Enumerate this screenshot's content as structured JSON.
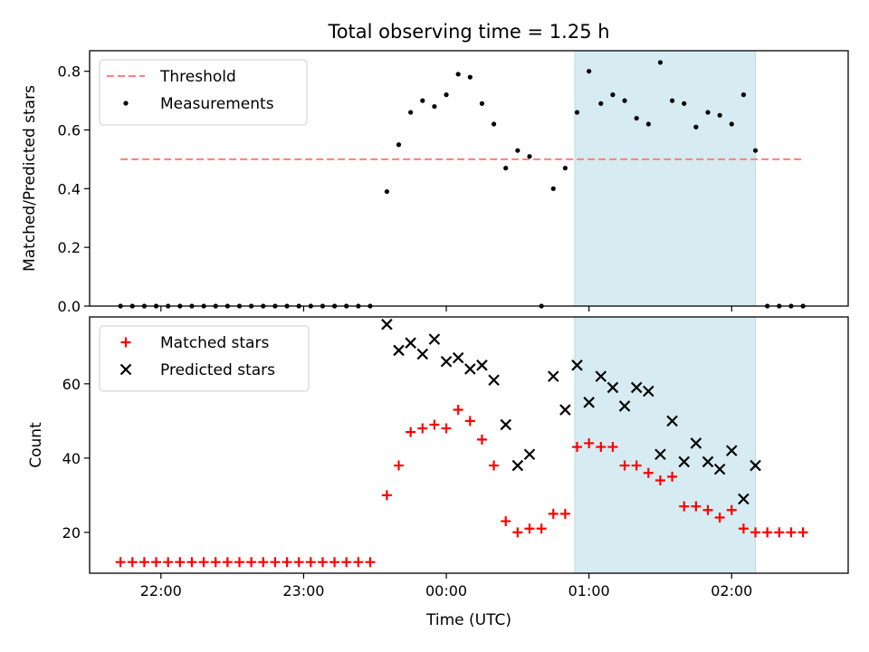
{
  "figure": {
    "title": "Total observing time = 1.25 h",
    "xlabel": "Time (UTC)"
  },
  "chart_data": [
    {
      "type": "scatter",
      "ylabel": "Matched/Predicted stars",
      "ylim": [
        0,
        0.87
      ],
      "xlim": [
        "21:30",
        "02:49"
      ],
      "yticks": [
        0.0,
        0.2,
        0.4,
        0.6,
        0.8
      ],
      "ytick_labels": [
        "0.0",
        "0.2",
        "0.4",
        "0.6",
        "0.8"
      ],
      "shaded_interval": [
        "00:54",
        "02:10"
      ],
      "grid": false,
      "legend_position": "upper-left",
      "threshold": {
        "name": "Threshold",
        "y": 0.5,
        "x_start": "21:43",
        "x_end": "02:30",
        "color": "#ff7f7f"
      },
      "series": [
        {
          "name": "Measurements",
          "marker": "dot",
          "color": "#000000",
          "points": [
            [
              "21:43",
              0.0
            ],
            [
              "21:48",
              0.0
            ],
            [
              "21:53",
              0.0
            ],
            [
              "21:58",
              0.0
            ],
            [
              "22:03",
              0.0
            ],
            [
              "22:08",
              0.0
            ],
            [
              "22:13",
              0.0
            ],
            [
              "22:18",
              0.0
            ],
            [
              "22:23",
              0.0
            ],
            [
              "22:28",
              0.0
            ],
            [
              "22:33",
              0.0
            ],
            [
              "22:38",
              0.0
            ],
            [
              "22:43",
              0.0
            ],
            [
              "22:48",
              0.0
            ],
            [
              "22:53",
              0.0
            ],
            [
              "22:58",
              0.0
            ],
            [
              "23:03",
              0.0
            ],
            [
              "23:08",
              0.0
            ],
            [
              "23:13",
              0.0
            ],
            [
              "23:18",
              0.0
            ],
            [
              "23:23",
              0.0
            ],
            [
              "23:28",
              0.0
            ],
            [
              "23:35",
              0.39
            ],
            [
              "23:40",
              0.55
            ],
            [
              "23:45",
              0.66
            ],
            [
              "23:50",
              0.7
            ],
            [
              "23:55",
              0.68
            ],
            [
              "00:00",
              0.72
            ],
            [
              "00:05",
              0.79
            ],
            [
              "00:10",
              0.78
            ],
            [
              "00:15",
              0.69
            ],
            [
              "00:20",
              0.62
            ],
            [
              "00:25",
              0.47
            ],
            [
              "00:30",
              0.53
            ],
            [
              "00:35",
              0.51
            ],
            [
              "00:40",
              0.0
            ],
            [
              "00:45",
              0.4
            ],
            [
              "00:50",
              0.47
            ],
            [
              "00:55",
              0.66
            ],
            [
              "01:00",
              0.8
            ],
            [
              "01:05",
              0.69
            ],
            [
              "01:10",
              0.72
            ],
            [
              "01:15",
              0.7
            ],
            [
              "01:20",
              0.64
            ],
            [
              "01:25",
              0.62
            ],
            [
              "01:30",
              0.83
            ],
            [
              "01:35",
              0.7
            ],
            [
              "01:40",
              0.69
            ],
            [
              "01:45",
              0.61
            ],
            [
              "01:50",
              0.66
            ],
            [
              "01:55",
              0.65
            ],
            [
              "02:00",
              0.62
            ],
            [
              "02:05",
              0.72
            ],
            [
              "02:10",
              0.53
            ],
            [
              "02:15",
              0.0
            ],
            [
              "02:20",
              0.0
            ],
            [
              "02:25",
              0.0
            ],
            [
              "02:30",
              0.0
            ]
          ]
        }
      ]
    },
    {
      "type": "scatter",
      "ylabel": "Count",
      "ylim": [
        9,
        78
      ],
      "xlim": [
        "21:30",
        "02:49"
      ],
      "yticks": [
        20,
        40,
        60
      ],
      "ytick_labels": [
        "20",
        "40",
        "60"
      ],
      "shaded_interval": [
        "00:54",
        "02:10"
      ],
      "grid": false,
      "legend_position": "upper-left",
      "xticks": [
        "22:00",
        "23:00",
        "00:00",
        "01:00",
        "02:00"
      ],
      "series": [
        {
          "name": "Matched stars",
          "marker": "plus",
          "color": "#ff0000",
          "points": [
            [
              "21:43",
              12
            ],
            [
              "21:48",
              12
            ],
            [
              "21:53",
              12
            ],
            [
              "21:58",
              12
            ],
            [
              "22:03",
              12
            ],
            [
              "22:08",
              12
            ],
            [
              "22:13",
              12
            ],
            [
              "22:18",
              12
            ],
            [
              "22:23",
              12
            ],
            [
              "22:28",
              12
            ],
            [
              "22:33",
              12
            ],
            [
              "22:38",
              12
            ],
            [
              "22:43",
              12
            ],
            [
              "22:48",
              12
            ],
            [
              "22:53",
              12
            ],
            [
              "22:58",
              12
            ],
            [
              "23:03",
              12
            ],
            [
              "23:08",
              12
            ],
            [
              "23:13",
              12
            ],
            [
              "23:18",
              12
            ],
            [
              "23:23",
              12
            ],
            [
              "23:28",
              12
            ],
            [
              "23:35",
              30
            ],
            [
              "23:40",
              38
            ],
            [
              "23:45",
              47
            ],
            [
              "23:50",
              48
            ],
            [
              "23:55",
              49
            ],
            [
              "00:00",
              48
            ],
            [
              "00:05",
              53
            ],
            [
              "00:10",
              50
            ],
            [
              "00:15",
              45
            ],
            [
              "00:20",
              38
            ],
            [
              "00:25",
              23
            ],
            [
              "00:30",
              20
            ],
            [
              "00:35",
              21
            ],
            [
              "00:40",
              21
            ],
            [
              "00:45",
              25
            ],
            [
              "00:50",
              25
            ],
            [
              "00:55",
              43
            ],
            [
              "01:00",
              44
            ],
            [
              "01:05",
              43
            ],
            [
              "01:10",
              43
            ],
            [
              "01:15",
              38
            ],
            [
              "01:20",
              38
            ],
            [
              "01:25",
              36
            ],
            [
              "01:30",
              34
            ],
            [
              "01:35",
              35
            ],
            [
              "01:40",
              27
            ],
            [
              "01:45",
              27
            ],
            [
              "01:50",
              26
            ],
            [
              "01:55",
              24
            ],
            [
              "02:00",
              26
            ],
            [
              "02:05",
              21
            ],
            [
              "02:10",
              20
            ],
            [
              "02:15",
              20
            ],
            [
              "02:20",
              20
            ],
            [
              "02:25",
              20
            ],
            [
              "02:30",
              20
            ]
          ]
        },
        {
          "name": "Predicted stars",
          "marker": "x",
          "color": "#000000",
          "points": [
            [
              "23:35",
              76
            ],
            [
              "23:40",
              69
            ],
            [
              "23:45",
              71
            ],
            [
              "23:50",
              68
            ],
            [
              "23:55",
              72
            ],
            [
              "00:00",
              66
            ],
            [
              "00:05",
              67
            ],
            [
              "00:10",
              64
            ],
            [
              "00:15",
              65
            ],
            [
              "00:20",
              61
            ],
            [
              "00:25",
              49
            ],
            [
              "00:30",
              38
            ],
            [
              "00:35",
              41
            ],
            [
              "00:45",
              62
            ],
            [
              "00:50",
              53
            ],
            [
              "00:55",
              65
            ],
            [
              "01:00",
              55
            ],
            [
              "01:05",
              62
            ],
            [
              "01:10",
              59
            ],
            [
              "01:15",
              54
            ],
            [
              "01:20",
              59
            ],
            [
              "01:25",
              58
            ],
            [
              "01:30",
              41
            ],
            [
              "01:35",
              50
            ],
            [
              "01:40",
              39
            ],
            [
              "01:45",
              44
            ],
            [
              "01:50",
              39
            ],
            [
              "01:55",
              37
            ],
            [
              "02:00",
              42
            ],
            [
              "02:05",
              29
            ],
            [
              "02:10",
              38
            ]
          ]
        }
      ]
    }
  ],
  "style": {
    "shade_color": "#add8e6",
    "shade_alpha": 0.5,
    "axis_color": "#000000"
  }
}
